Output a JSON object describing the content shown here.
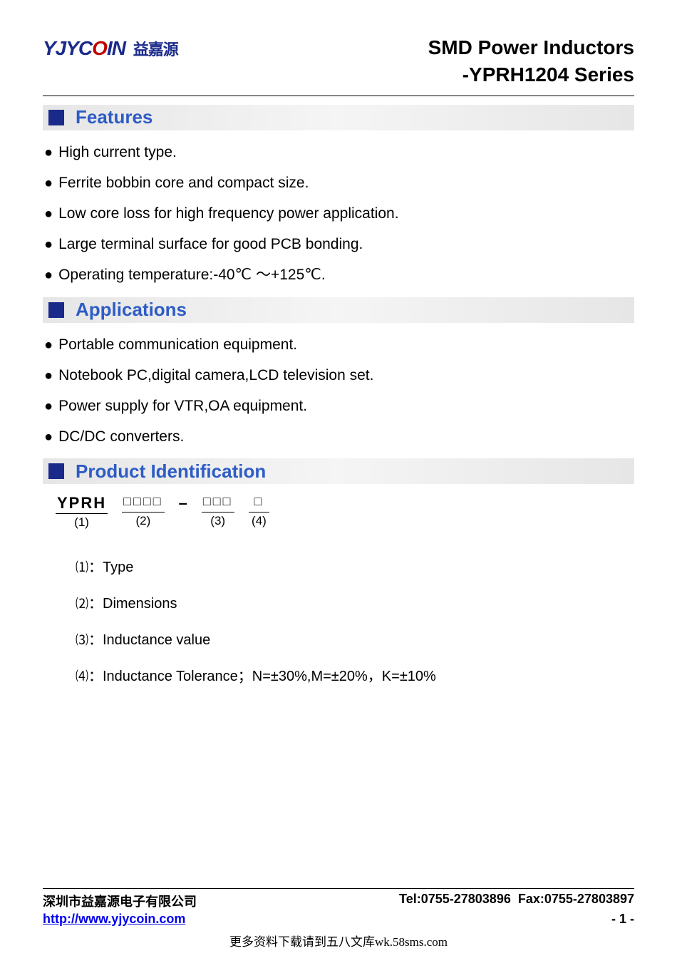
{
  "header": {
    "logo_en_prefix": "YJYC",
    "logo_en_red": "O",
    "logo_en_suffix": "IN",
    "logo_cn": "益嘉源",
    "title_line1": "SMD Power Inductors",
    "title_line2": "-YPRH1204 Series"
  },
  "sections": {
    "features": {
      "title": "Features",
      "items": [
        "High current type.",
        "Ferrite bobbin core and compact size.",
        "Low core loss for high frequency power application.",
        "Large terminal surface for good PCB bonding.",
        "Operating temperature:-40℃ ～+125℃."
      ]
    },
    "applications": {
      "title": "Applications",
      "items": [
        "Portable communication equipment.",
        "Notebook PC,digital camera,LCD television set.",
        "Power supply for VTR,OA equipment.",
        "DC/DC converters."
      ]
    },
    "product_id": {
      "title": "Product Identification",
      "parts": [
        {
          "top": "YPRH",
          "num": "(1)"
        },
        {
          "top": "□□□□",
          "num": "(2)"
        },
        {
          "top": "□□□",
          "num": "(3)"
        },
        {
          "top": "□",
          "num": "(4)"
        }
      ],
      "definitions": [
        {
          "num": "⑴",
          "text": "：Type"
        },
        {
          "num": "⑵",
          "text": "：Dimensions"
        },
        {
          "num": "⑶",
          "text": "：Inductance value"
        },
        {
          "num": "⑷",
          "text": "：Inductance Tolerance；N=±30%,M=±20%，K=±10%"
        }
      ]
    }
  },
  "footer": {
    "company": "深圳市益嘉源电子有限公司",
    "tel": "Tel:0755-27803896",
    "fax": "Fax:0755-27803897",
    "url": "http://www.yjycoin.com",
    "page": "- 1 -"
  },
  "bottom_note": "更多资料下载请到五八文库wk.58sms.com"
}
